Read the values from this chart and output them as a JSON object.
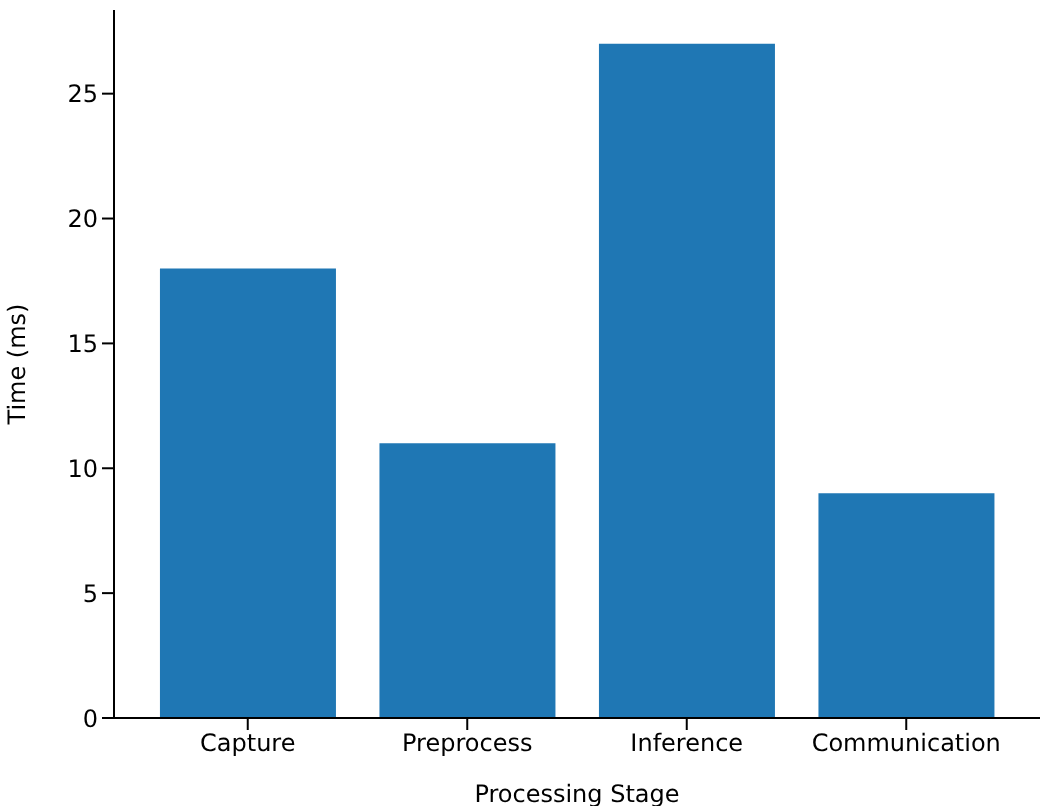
{
  "chart_data": {
    "type": "bar",
    "xlabel": "Processing Stage",
    "ylabel": "Time (ms)",
    "categories": [
      "Capture",
      "Preprocess",
      "Inference",
      "Communication"
    ],
    "values": [
      18,
      11,
      27,
      9
    ],
    "color": "#1f77b4",
    "ylim": [
      0,
      28.35
    ],
    "yticks": [
      0,
      5,
      10,
      15,
      20,
      25
    ],
    "grid": false,
    "legend": false
  }
}
